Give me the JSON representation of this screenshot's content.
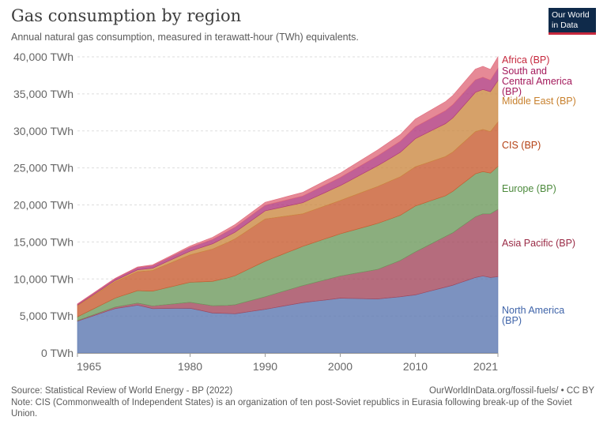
{
  "header": {
    "title": "Gas consumption by region",
    "subtitle": "Annual natural gas consumption, measured in terawatt-hour (TWh) equivalents.",
    "logo_line1": "Our World",
    "logo_line2": "in Data"
  },
  "footer": {
    "source": "Source: Statistical Review of World Energy - BP (2022)",
    "url": "OurWorldInData.org/fossil-fuels/ • CC BY",
    "note": "Note: CIS (Commonwealth of Independent States) is an organization of ten post-Soviet republics in Eurasia following break-up of the Soviet Union."
  },
  "chart_data": {
    "type": "area",
    "stacked": true,
    "x_start": 1965,
    "x_end": 2021,
    "xticks": [
      "1965",
      "1980",
      "1990",
      "2000",
      "2010",
      "2021"
    ],
    "yticks": [
      "0 TWh",
      "5,000 TWh",
      "10,000 TWh",
      "15,000 TWh",
      "20,000 TWh",
      "25,000 TWh",
      "30,000 TWh",
      "35,000 TWh",
      "40,000 TWh"
    ],
    "ylim": [
      0,
      40000
    ],
    "grid": true,
    "series": [
      {
        "name": "North America (BP)",
        "color": "#5b77b0",
        "values": [
          {
            "x": 1965,
            "y": 4300
          },
          {
            "x": 1970,
            "y": 6000
          },
          {
            "x": 1973,
            "y": 6450
          },
          {
            "x": 1975,
            "y": 6000
          },
          {
            "x": 1980,
            "y": 6050
          },
          {
            "x": 1983,
            "y": 5400
          },
          {
            "x": 1986,
            "y": 5300
          },
          {
            "x": 1990,
            "y": 5900
          },
          {
            "x": 1995,
            "y": 6800
          },
          {
            "x": 2000,
            "y": 7400
          },
          {
            "x": 2005,
            "y": 7300
          },
          {
            "x": 2008,
            "y": 7600
          },
          {
            "x": 2010,
            "y": 7850
          },
          {
            "x": 2015,
            "y": 9150
          },
          {
            "x": 2018,
            "y": 10200
          },
          {
            "x": 2019,
            "y": 10400
          },
          {
            "x": 2020,
            "y": 10200
          },
          {
            "x": 2021,
            "y": 10300
          }
        ]
      },
      {
        "name": "Asia Pacific (BP)",
        "color": "#a2475c",
        "values": [
          {
            "x": 1965,
            "y": 80
          },
          {
            "x": 1970,
            "y": 200
          },
          {
            "x": 1975,
            "y": 350
          },
          {
            "x": 1980,
            "y": 800
          },
          {
            "x": 1985,
            "y": 1100
          },
          {
            "x": 1990,
            "y": 1700
          },
          {
            "x": 1995,
            "y": 2300
          },
          {
            "x": 2000,
            "y": 3000
          },
          {
            "x": 2005,
            "y": 4000
          },
          {
            "x": 2008,
            "y": 4900
          },
          {
            "x": 2010,
            "y": 5800
          },
          {
            "x": 2015,
            "y": 7100
          },
          {
            "x": 2018,
            "y": 8200
          },
          {
            "x": 2019,
            "y": 8400
          },
          {
            "x": 2020,
            "y": 8600
          },
          {
            "x": 2021,
            "y": 9100
          }
        ]
      },
      {
        "name": "Europe (BP)",
        "color": "#6e9a5e",
        "values": [
          {
            "x": 1965,
            "y": 500
          },
          {
            "x": 1970,
            "y": 1200
          },
          {
            "x": 1975,
            "y": 2000
          },
          {
            "x": 1980,
            "y": 2700
          },
          {
            "x": 1985,
            "y": 3700
          },
          {
            "x": 1990,
            "y": 4800
          },
          {
            "x": 1995,
            "y": 5300
          },
          {
            "x": 2000,
            "y": 5700
          },
          {
            "x": 2005,
            "y": 6200
          },
          {
            "x": 2008,
            "y": 6100
          },
          {
            "x": 2010,
            "y": 6200
          },
          {
            "x": 2014,
            "y": 5500
          },
          {
            "x": 2015,
            "y": 5600
          },
          {
            "x": 2018,
            "y": 5800
          },
          {
            "x": 2019,
            "y": 5700
          },
          {
            "x": 2020,
            "y": 5500
          },
          {
            "x": 2021,
            "y": 5800
          }
        ]
      },
      {
        "name": "CIS (BP)",
        "color": "#c85d31",
        "values": [
          {
            "x": 1965,
            "y": 1500
          },
          {
            "x": 1970,
            "y": 2200
          },
          {
            "x": 1975,
            "y": 2800
          },
          {
            "x": 1980,
            "y": 3700
          },
          {
            "x": 1985,
            "y": 4800
          },
          {
            "x": 1990,
            "y": 5700
          },
          {
            "x": 1995,
            "y": 4400
          },
          {
            "x": 2000,
            "y": 4500
          },
          {
            "x": 2005,
            "y": 5000
          },
          {
            "x": 2008,
            "y": 5200
          },
          {
            "x": 2010,
            "y": 5300
          },
          {
            "x": 2015,
            "y": 5300
          },
          {
            "x": 2018,
            "y": 5700
          },
          {
            "x": 2019,
            "y": 5700
          },
          {
            "x": 2020,
            "y": 5600
          },
          {
            "x": 2021,
            "y": 6000
          }
        ]
      },
      {
        "name": "Middle East (BP)",
        "color": "#cc8a43",
        "values": [
          {
            "x": 1965,
            "y": 80
          },
          {
            "x": 1970,
            "y": 180
          },
          {
            "x": 1975,
            "y": 300
          },
          {
            "x": 1980,
            "y": 500
          },
          {
            "x": 1985,
            "y": 850
          },
          {
            "x": 1990,
            "y": 1100
          },
          {
            "x": 1995,
            "y": 1500
          },
          {
            "x": 2000,
            "y": 2000
          },
          {
            "x": 2005,
            "y": 2800
          },
          {
            "x": 2008,
            "y": 3300
          },
          {
            "x": 2010,
            "y": 3800
          },
          {
            "x": 2015,
            "y": 4600
          },
          {
            "x": 2018,
            "y": 5300
          },
          {
            "x": 2019,
            "y": 5400
          },
          {
            "x": 2020,
            "y": 5400
          },
          {
            "x": 2021,
            "y": 5600
          }
        ]
      },
      {
        "name": "South and Central America (BP)",
        "color": "#b1387c",
        "values": [
          {
            "x": 1965,
            "y": 150
          },
          {
            "x": 1970,
            "y": 250
          },
          {
            "x": 1975,
            "y": 350
          },
          {
            "x": 1980,
            "y": 500
          },
          {
            "x": 1985,
            "y": 650
          },
          {
            "x": 1990,
            "y": 750
          },
          {
            "x": 1995,
            "y": 900
          },
          {
            "x": 2000,
            "y": 1100
          },
          {
            "x": 2005,
            "y": 1350
          },
          {
            "x": 2008,
            "y": 1500
          },
          {
            "x": 2010,
            "y": 1600
          },
          {
            "x": 2015,
            "y": 1800
          },
          {
            "x": 2018,
            "y": 1700
          },
          {
            "x": 2019,
            "y": 1650
          },
          {
            "x": 2020,
            "y": 1550
          },
          {
            "x": 2021,
            "y": 1650
          }
        ]
      },
      {
        "name": "Africa (BP)",
        "color": "#e06c7c",
        "values": [
          {
            "x": 1965,
            "y": 30
          },
          {
            "x": 1970,
            "y": 50
          },
          {
            "x": 1975,
            "y": 100
          },
          {
            "x": 1980,
            "y": 200
          },
          {
            "x": 1985,
            "y": 350
          },
          {
            "x": 1990,
            "y": 400
          },
          {
            "x": 1995,
            "y": 500
          },
          {
            "x": 2000,
            "y": 600
          },
          {
            "x": 2005,
            "y": 800
          },
          {
            "x": 2008,
            "y": 900
          },
          {
            "x": 2010,
            "y": 1050
          },
          {
            "x": 2015,
            "y": 1250
          },
          {
            "x": 2018,
            "y": 1450
          },
          {
            "x": 2019,
            "y": 1480
          },
          {
            "x": 2020,
            "y": 1450
          },
          {
            "x": 2021,
            "y": 1550
          }
        ]
      }
    ],
    "labels": [
      {
        "lines": [
          "Africa (BP)"
        ],
        "color": "#c6283d"
      },
      {
        "lines": [
          "South and",
          "Central America",
          "(BP)"
        ],
        "color": "#a3195b"
      },
      {
        "lines": [
          "Middle East (BP)"
        ],
        "color": "#c8812e"
      },
      {
        "lines": [
          "CIS (BP)"
        ],
        "color": "#b44013"
      },
      {
        "lines": [
          "Europe (BP)"
        ],
        "color": "#4c8a3c"
      },
      {
        "lines": [
          "Asia Pacific (BP)"
        ],
        "color": "#992a45"
      },
      {
        "lines": [
          "North America",
          "(BP)"
        ],
        "color": "#3f64a9"
      }
    ]
  }
}
